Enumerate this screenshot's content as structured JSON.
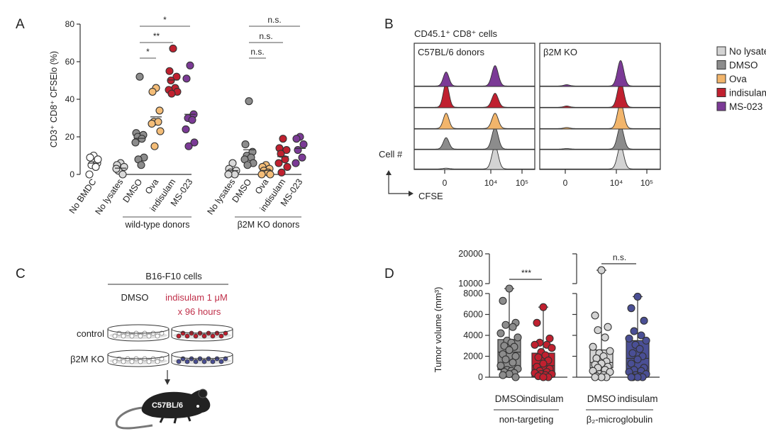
{
  "panel_labels": {
    "a": "A",
    "b": "B",
    "c": "C",
    "d": "D"
  },
  "chart_data": [
    {
      "panel": "A",
      "type": "scatter",
      "ylabel": "CD3⁺ CD8⁺ CFSElo (%)",
      "ylim": [
        0,
        80
      ],
      "yticks": [
        "0",
        "20",
        "40",
        "60",
        "80"
      ],
      "groups": [
        {
          "label": "",
          "categories": [
            {
              "name": "No BMDC",
              "color": "#ffffff",
              "values": [
                10,
                9,
                6,
                5,
                4,
                0,
                8
              ]
            }
          ]
        },
        {
          "label": "wild-type donors",
          "categories": [
            {
              "name": "No lysates",
              "color": "#d9d9d9",
              "values": [
                6,
                5,
                4,
                2,
                0,
                3
              ]
            },
            {
              "name": "DMSO",
              "color": "#8c8c8c",
              "values": [
                52,
                22,
                21,
                20,
                19,
                17,
                9,
                8,
                5
              ]
            },
            {
              "name": "Ova",
              "color": "#f4bd78",
              "values": [
                46,
                44,
                34,
                28,
                28,
                27,
                23,
                15
              ]
            },
            {
              "name": "indisulam",
              "color": "#c0202f",
              "values": [
                67,
                55,
                52,
                50,
                46,
                45,
                44,
                43
              ]
            },
            {
              "name": "MS-023",
              "color": "#7b3a96",
              "values": [
                58,
                51,
                32,
                30,
                29,
                24,
                17,
                15
              ]
            }
          ]
        },
        {
          "label": "β2M KO donors",
          "categories": [
            {
              "name": "No lysates",
              "color": "#d9d9d9",
              "values": [
                6,
                3,
                2,
                1,
                0,
                0
              ]
            },
            {
              "name": "DMSO",
              "color": "#8c8c8c",
              "values": [
                39,
                16,
                12,
                10,
                9,
                8,
                6,
                5
              ]
            },
            {
              "name": "Ova",
              "color": "#f4bd78",
              "values": [
                5,
                4,
                3,
                2,
                1,
                0,
                0
              ]
            },
            {
              "name": "indisulam",
              "color": "#c0202f",
              "values": [
                19,
                14,
                13,
                11,
                8,
                6,
                4,
                1
              ]
            },
            {
              "name": "MS-023",
              "color": "#7b3a96",
              "values": [
                20,
                19,
                16,
                13,
                9,
                6
              ]
            }
          ]
        }
      ],
      "significance": [
        {
          "group": "wild-type donors",
          "from": "DMSO",
          "to": "Ova",
          "label": "*"
        },
        {
          "group": "wild-type donors",
          "from": "DMSO",
          "to": "indisulam",
          "label": "**"
        },
        {
          "group": "wild-type donors",
          "from": "DMSO",
          "to": "MS-023",
          "label": "*"
        },
        {
          "group": "β2M KO donors",
          "from": "DMSO",
          "to": "Ova",
          "label": "n.s."
        },
        {
          "group": "β2M KO donors",
          "from": "DMSO",
          "to": "indisulam",
          "label": "n.s."
        },
        {
          "group": "β2M KO donors",
          "from": "DMSO",
          "to": "MS-023",
          "label": "n.s."
        }
      ]
    },
    {
      "panel": "B",
      "type": "area",
      "title": "CD45.1⁺ CD8⁺ cells",
      "xlabel": "CFSE",
      "ylabel": "Cell #",
      "xticks": [
        "0",
        "10⁴",
        "10⁵"
      ],
      "facets": [
        "C57BL/6 donors",
        "β2M KO"
      ],
      "legend": {
        "placement": "right",
        "entries": [
          {
            "name": "No lysates",
            "color": "#d3d3d3"
          },
          {
            "name": "DMSO",
            "color": "#8c8c8c"
          },
          {
            "name": "Ova",
            "color": "#f2b56b"
          },
          {
            "name": "indisulam",
            "color": "#c0202f"
          },
          {
            "name": "MS-023",
            "color": "#7b3a96"
          }
        ]
      },
      "rows_top_to_bottom": [
        "MS-023",
        "indisulam",
        "Ova",
        "DMSO",
        "No lysates"
      ],
      "peaks_relative_height": {
        "C57BL/6 donors": {
          "MS-023": {
            "divided": 0.55,
            "undivided": 0.8
          },
          "indisulam": {
            "divided": 0.95,
            "undivided": 0.55
          },
          "Ova": {
            "divided": 0.6,
            "undivided": 0.6
          },
          "DMSO": {
            "divided": 0.45,
            "undivided": 0.85
          },
          "No lysates": {
            "divided": 0.03,
            "undivided": 0.9
          }
        },
        "β2M KO": {
          "MS-023": {
            "divided": 0.05,
            "undivided": 1.0
          },
          "indisulam": {
            "divided": 0.05,
            "undivided": 1.0
          },
          "Ova": {
            "divided": 0.04,
            "undivided": 1.0
          },
          "DMSO": {
            "divided": 0.02,
            "undivided": 0.9
          },
          "No lysates": {
            "divided": 0.0,
            "undivided": 0.9
          }
        }
      }
    },
    {
      "panel": "D",
      "type": "box",
      "ylabel": "Tumor volume (mm³)",
      "yticks": [
        "0",
        "2000",
        "4000",
        "6000",
        "8000",
        "10000",
        "20000"
      ],
      "ybreak": [
        8000,
        10000
      ],
      "groups": [
        {
          "label": "non-targeting",
          "boxes": [
            {
              "name": "DMSO",
              "color": "#8c8c8c",
              "min": 0,
              "q1": 700,
              "median": 2400,
              "q3": 3600,
              "max": 9000,
              "values": [
                9000,
                7300,
                5200,
                5000,
                4800,
                4200,
                3800,
                3500,
                3300,
                3000,
                2900,
                2600,
                2200,
                2000,
                1700,
                1400,
                1100,
                800,
                700,
                600,
                500,
                400,
                300,
                200,
                0
              ]
            },
            {
              "name": "indisulam",
              "color": "#c0202f",
              "min": 0,
              "q1": 0,
              "median": 1100,
              "q3": 2300,
              "max": 6700,
              "values": [
                6700,
                5200,
                3700,
                3300,
                3100,
                3100,
                2800,
                2400,
                2100,
                1900,
                1600,
                1300,
                1000,
                800,
                600,
                500,
                400,
                300,
                300,
                200,
                100,
                0,
                0
              ]
            }
          ],
          "significance": "***"
        },
        {
          "label": "β₂-microglobulin",
          "boxes": [
            {
              "name": "DMSO",
              "color": "#d3d3d3",
              "min": 0,
              "q1": 900,
              "median": 1400,
              "q3": 2600,
              "max": 14500,
              "values": [
                14500,
                5900,
                4800,
                4500,
                3800,
                2900,
                2500,
                2300,
                2000,
                1800,
                1500,
                1300,
                1200,
                1000,
                900,
                700,
                600,
                500,
                300,
                200,
                100,
                0,
                0,
                0
              ]
            },
            {
              "name": "indisulam",
              "color": "#4a4f95",
              "min": 0,
              "q1": 500,
              "median": 1800,
              "q3": 3500,
              "max": 7700,
              "values": [
                7700,
                6600,
                5400,
                4400,
                4000,
                3700,
                3500,
                3100,
                2700,
                2300,
                2000,
                1700,
                1300,
                900,
                700,
                600,
                500,
                300,
                200,
                100,
                0,
                0,
                0,
                0
              ]
            }
          ],
          "significance": "n.s."
        }
      ]
    }
  ],
  "panel_c": {
    "title": "B16-F10 cells",
    "col_dmso": "DMSO",
    "col_indisulam": "indisulam 1 μM",
    "col_duration": "x 96 hours",
    "row_control": "control",
    "row_b2m": "β2M KO",
    "mouse_label": "C57BL/6",
    "colors": {
      "indisulam_text": "#c0304a",
      "dmso_cells": "#9a9a9a",
      "indisulam_cells": "#c0202f",
      "b2m_indisulam_cells": "#4a4f95"
    }
  }
}
